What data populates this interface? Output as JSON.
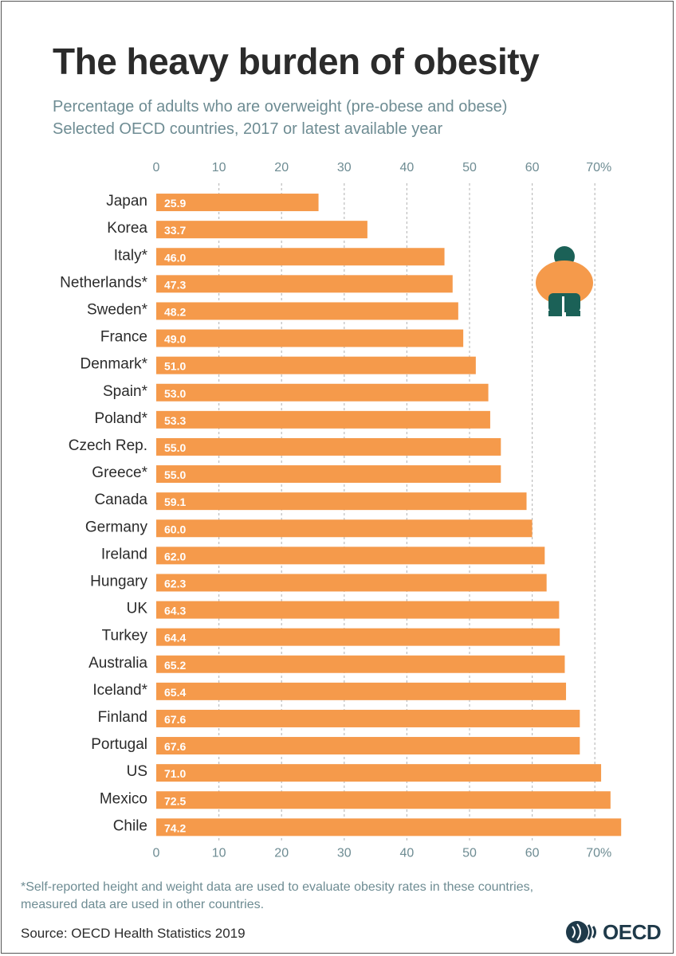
{
  "title": "The heavy burden of obesity",
  "subtitle_line1": "Percentage of adults who are overweight (pre-obese and obese)",
  "subtitle_line2": "Selected OECD countries, 2017 or latest available year",
  "footnote_line1": "*Self-reported height and weight data are used to evaluate obesity rates in these countries,",
  "footnote_line2": "measured data are used in other countries.",
  "source": "Source: OECD Health Statistics 2019",
  "logo_text": "OECD",
  "colors": {
    "bar": "#f59a4b",
    "grid": "#bdbdbd",
    "axis_label": "#6e8c93",
    "country": "#2b2b2b",
    "value": "#ffffff",
    "figure_body": "#f59a4b",
    "figure_head": "#1b6157"
  },
  "chart_data": {
    "type": "bar",
    "orientation": "horizontal",
    "categories": [
      "Japan",
      "Korea",
      "Italy*",
      "Netherlands*",
      "Sweden*",
      "France",
      "Denmark*",
      "Spain*",
      "Poland*",
      "Czech Rep.",
      "Greece*",
      "Canada",
      "Germany",
      "Ireland",
      "Hungary",
      "UK",
      "Turkey",
      "Australia",
      "Iceland*",
      "Finland",
      "Portugal",
      "US",
      "Mexico",
      "Chile"
    ],
    "values": [
      25.9,
      33.7,
      46.0,
      47.3,
      48.2,
      49.0,
      51.0,
      53.0,
      53.3,
      55.0,
      55.0,
      59.1,
      60.0,
      62.0,
      62.3,
      64.3,
      64.4,
      65.2,
      65.4,
      67.6,
      67.6,
      71.0,
      72.5,
      74.2
    ],
    "value_labels": [
      "25.9",
      "33.7",
      "46.0",
      "47.3",
      "48.2",
      "49.0",
      "51.0",
      "53.0",
      "53.3",
      "55.0",
      "55.0",
      "59.1",
      "60.0",
      "62.0",
      "62.3",
      "64.3",
      "64.4",
      "65.2",
      "65.4",
      "67.6",
      "67.6",
      "71.0",
      "72.5",
      "74.2"
    ],
    "ticks": [
      0,
      10,
      20,
      30,
      40,
      50,
      60,
      70
    ],
    "tick_labels": [
      "0",
      "10",
      "20",
      "30",
      "40",
      "50",
      "60",
      "70%"
    ],
    "xlim": [
      0,
      74.2
    ],
    "title": "The heavy burden of obesity",
    "xlabel": "",
    "ylabel": ""
  }
}
